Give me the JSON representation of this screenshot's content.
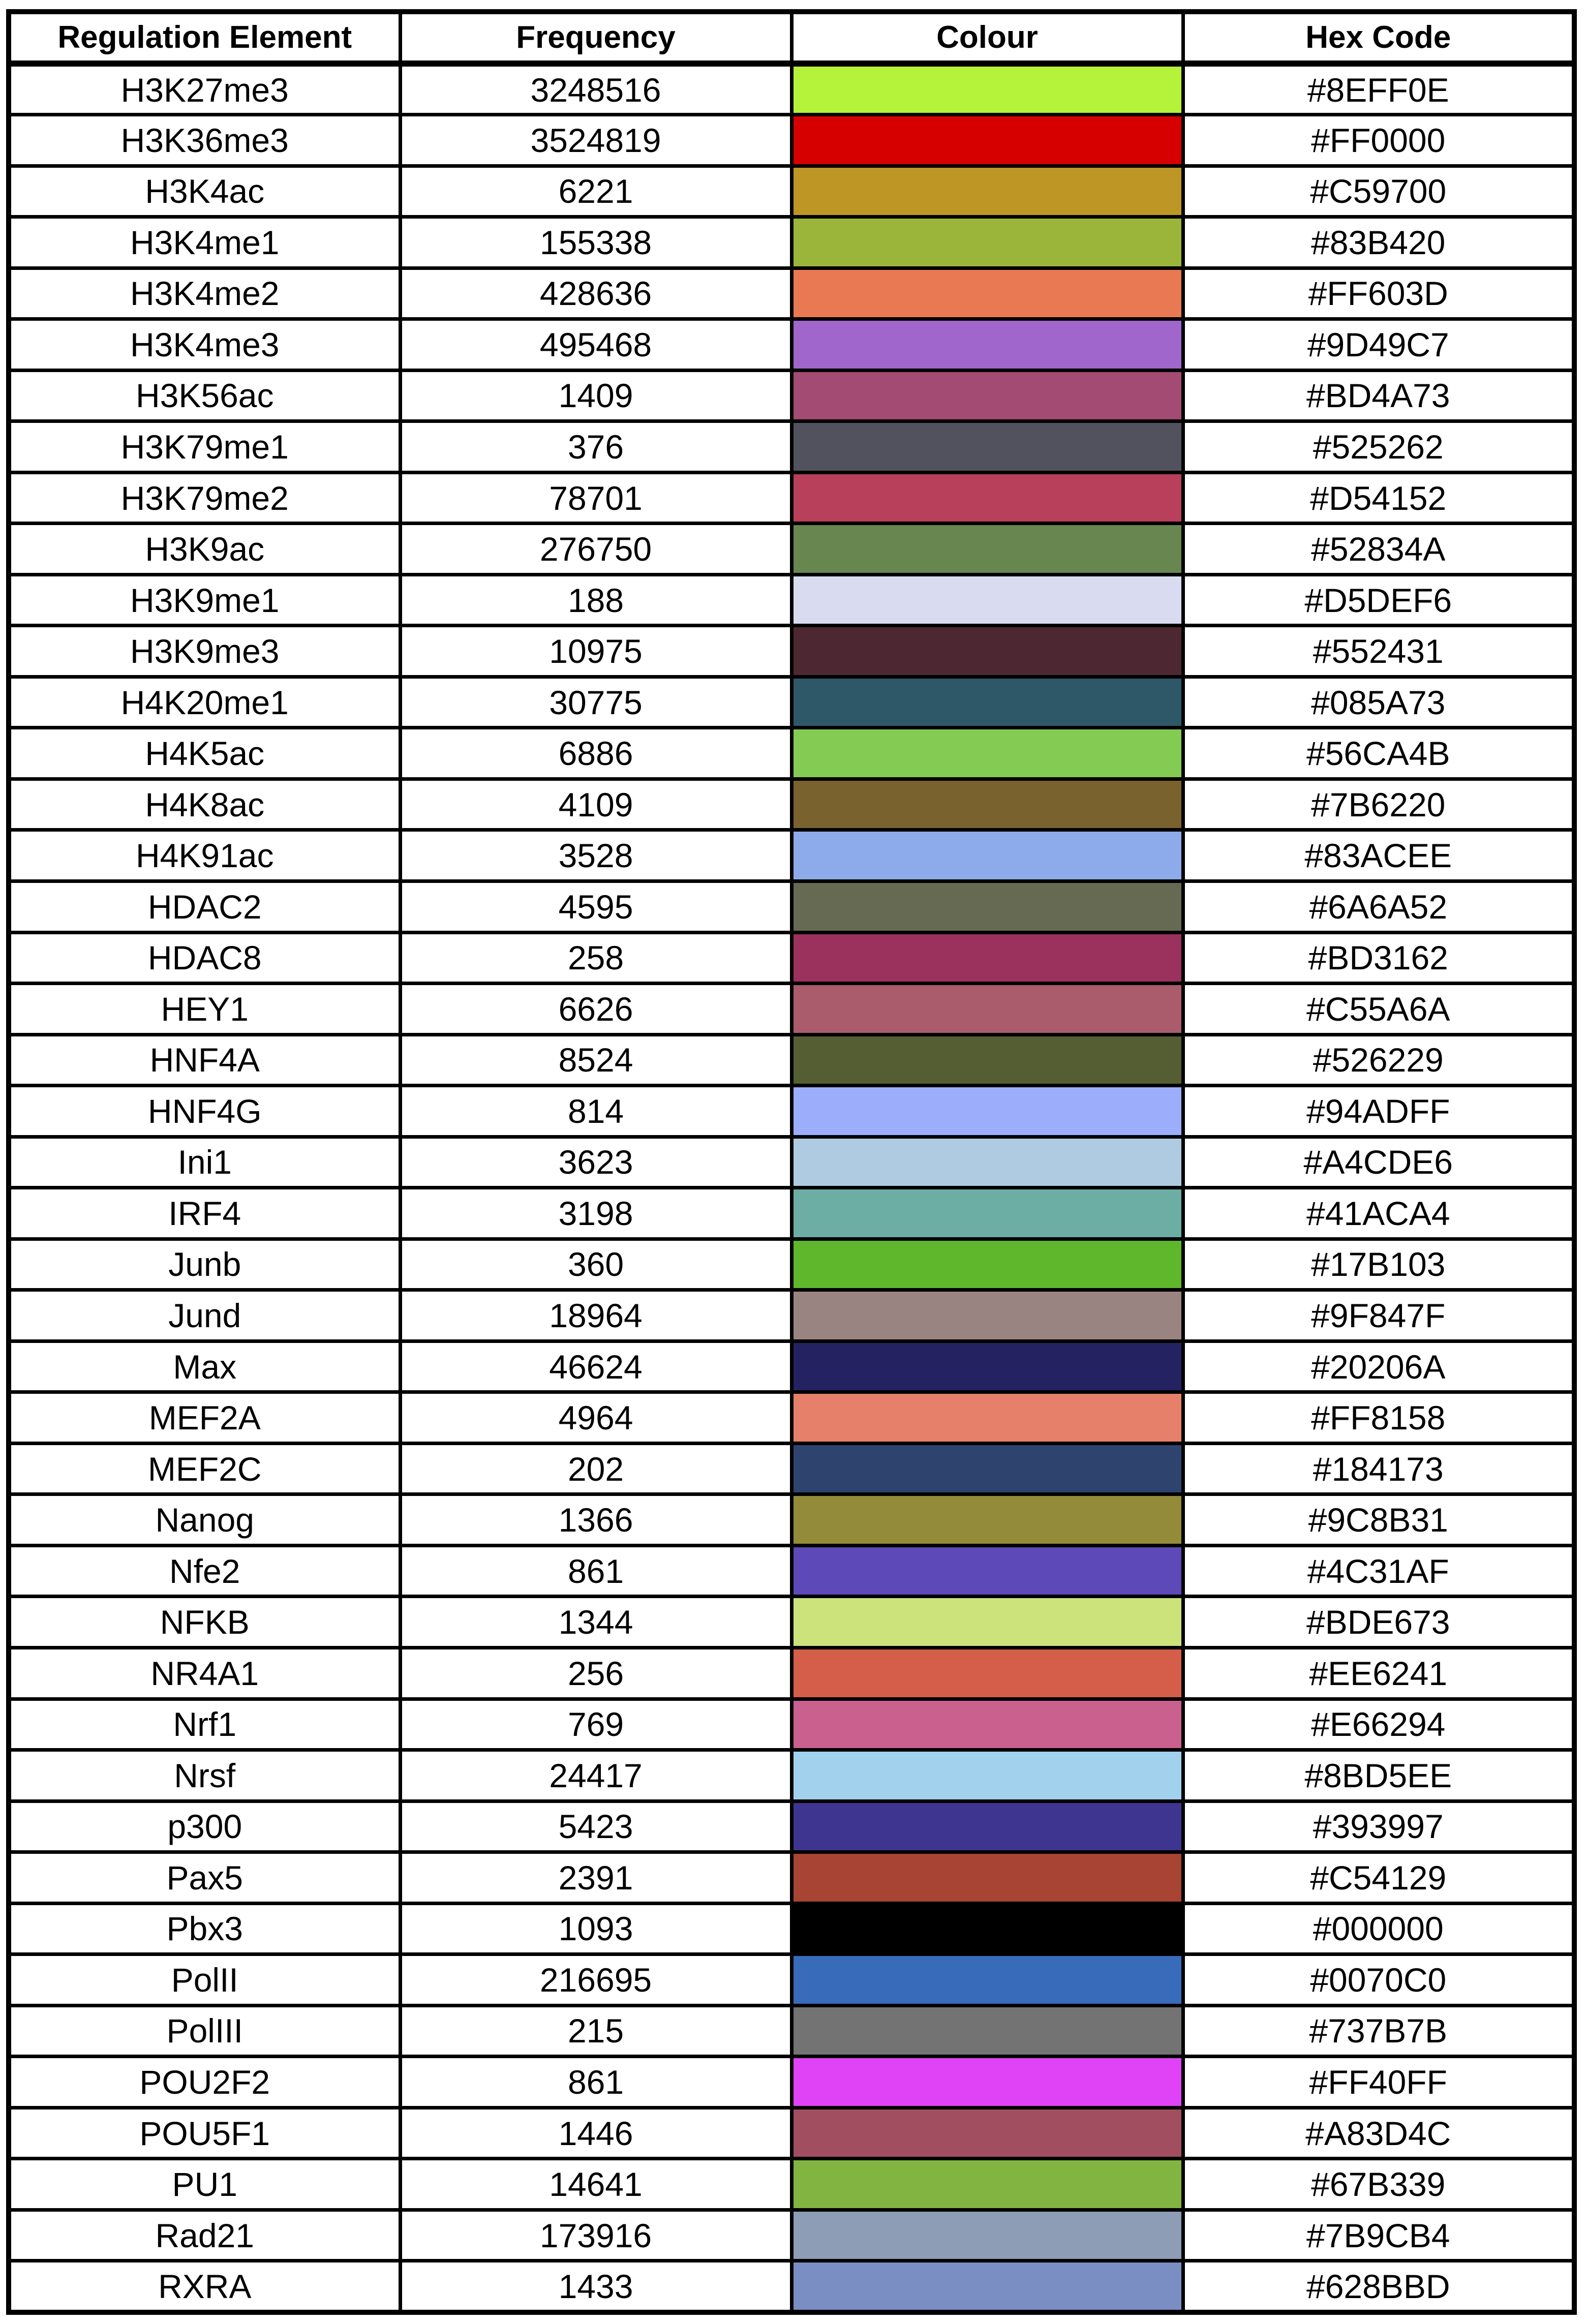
{
  "table": {
    "headers": [
      "Regulation Element",
      "Frequency",
      "Colour",
      "Hex Code"
    ],
    "rows": [
      {
        "element": "H3K27me3",
        "frequency": "3248516",
        "color": "#B5F23A",
        "hex": "#8EFF0E"
      },
      {
        "element": "H3K36me3",
        "frequency": "3524819",
        "color": "#D60000",
        "hex": "#FF0000"
      },
      {
        "element": "H3K4ac",
        "frequency": "6221",
        "color": "#BE9626",
        "hex": "#C59700"
      },
      {
        "element": "H3K4me1",
        "frequency": "155338",
        "color": "#9BB43A",
        "hex": "#83B420"
      },
      {
        "element": "H3K4me2",
        "frequency": "428636",
        "color": "#E97953",
        "hex": "#FF603D"
      },
      {
        "element": "H3K4me3",
        "frequency": "495468",
        "color": "#A066CB",
        "hex": "#9D49C7"
      },
      {
        "element": "H3K56ac",
        "frequency": "1409",
        "color": "#A44B73",
        "hex": "#BD4A73"
      },
      {
        "element": "H3K79me1",
        "frequency": "376",
        "color": "#52515E",
        "hex": "#525262"
      },
      {
        "element": "H3K79me2",
        "frequency": "78701",
        "color": "#B9405A",
        "hex": "#D54152"
      },
      {
        "element": "H3K9ac",
        "frequency": "276750",
        "color": "#678650",
        "hex": "#52834A"
      },
      {
        "element": "H3K9me1",
        "frequency": "188",
        "color": "#D9DCF0",
        "hex": "#D5DEF6"
      },
      {
        "element": "H3K9me3",
        "frequency": "10975",
        "color": "#4D2832",
        "hex": "#552431"
      },
      {
        "element": "H4K20me1",
        "frequency": "30775",
        "color": "#2E5868",
        "hex": "#085A73"
      },
      {
        "element": "H4K5ac",
        "frequency": "6886",
        "color": "#84CB54",
        "hex": "#56CA4B"
      },
      {
        "element": "H4K8ac",
        "frequency": "4109",
        "color": "#7A622F",
        "hex": "#7B6220"
      },
      {
        "element": "H4K91ac",
        "frequency": "3528",
        "color": "#8DABEA",
        "hex": "#83ACEE"
      },
      {
        "element": "HDAC2",
        "frequency": "4595",
        "color": "#666A52",
        "hex": "#6A6A52"
      },
      {
        "element": "HDAC8",
        "frequency": "258",
        "color": "#9B325E",
        "hex": "#BD3162"
      },
      {
        "element": "HEY1",
        "frequency": "6626",
        "color": "#AA5C6C",
        "hex": "#C55A6A"
      },
      {
        "element": "HNF4A",
        "frequency": "8524",
        "color": "#555D33",
        "hex": "#526229"
      },
      {
        "element": "HNF4G",
        "frequency": "814",
        "color": "#9CAEFB",
        "hex": "#94ADFF"
      },
      {
        "element": "Ini1",
        "frequency": "3623",
        "color": "#AFCBE2",
        "hex": "#A4CDE6"
      },
      {
        "element": "IRF4",
        "frequency": "3198",
        "color": "#6CADA4",
        "hex": "#41ACA4"
      },
      {
        "element": "Junb",
        "frequency": "360",
        "color": "#5FB72B",
        "hex": "#17B103"
      },
      {
        "element": "Jund",
        "frequency": "18964",
        "color": "#9A8482",
        "hex": "#9F847F"
      },
      {
        "element": "Max",
        "frequency": "46624",
        "color": "#252262",
        "hex": "#20206A"
      },
      {
        "element": "MEF2A",
        "frequency": "4964",
        "color": "#E7806A",
        "hex": "#FF8158"
      },
      {
        "element": "MEF2C",
        "frequency": "202",
        "color": "#2E446F",
        "hex": "#184173"
      },
      {
        "element": "Nanog",
        "frequency": "1366",
        "color": "#948B3A",
        "hex": "#9C8B31"
      },
      {
        "element": "Nfe2",
        "frequency": "861",
        "color": "#5D49B7",
        "hex": "#4C31AF"
      },
      {
        "element": "NFKB",
        "frequency": "1344",
        "color": "#CCE37C",
        "hex": "#BDE673"
      },
      {
        "element": "NR4A1",
        "frequency": "256",
        "color": "#D55E4A",
        "hex": "#EE6241"
      },
      {
        "element": "Nrf1",
        "frequency": "769",
        "color": "#C9608E",
        "hex": "#E66294"
      },
      {
        "element": "Nrsf",
        "frequency": "24417",
        "color": "#A2D1EE",
        "hex": "#8BD5EE"
      },
      {
        "element": "p300",
        "frequency": "5423",
        "color": "#3D358F",
        "hex": "#393997"
      },
      {
        "element": "Pax5",
        "frequency": "2391",
        "color": "#A84433",
        "hex": "#C54129"
      },
      {
        "element": "Pbx3",
        "frequency": "1093",
        "color": "#000000",
        "hex": "#000000"
      },
      {
        "element": "PolII",
        "frequency": "216695",
        "color": "#396BBB",
        "hex": "#0070C0"
      },
      {
        "element": "PolIII",
        "frequency": "215",
        "color": "#737373",
        "hex": "#737B7B"
      },
      {
        "element": "POU2F2",
        "frequency": "861",
        "color": "#E043F5",
        "hex": "#FF40FF"
      },
      {
        "element": "POU5F1",
        "frequency": "1446",
        "color": "#A04E60",
        "hex": "#A83D4C"
      },
      {
        "element": "PU1",
        "frequency": "14641",
        "color": "#82B441",
        "hex": "#67B339"
      },
      {
        "element": "Rad21",
        "frequency": "173916",
        "color": "#8C9DB5",
        "hex": "#7B9CB4"
      },
      {
        "element": "RXRA",
        "frequency": "1433",
        "color": "#7A8EC3",
        "hex": "#628BBD"
      }
    ]
  }
}
